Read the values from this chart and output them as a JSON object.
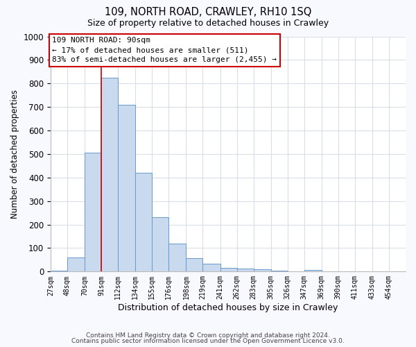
{
  "title": "109, NORTH ROAD, CRAWLEY, RH10 1SQ",
  "subtitle": "Size of property relative to detached houses in Crawley",
  "xlabel": "Distribution of detached houses by size in Crawley",
  "ylabel": "Number of detached properties",
  "bar_color": "#c9d9ee",
  "bar_edge_color": "#6699cc",
  "bar_left_edges": [
    27,
    48,
    70,
    91,
    112,
    134,
    155,
    176,
    198,
    219,
    241,
    262,
    283,
    305,
    326,
    347,
    369,
    390,
    411,
    433
  ],
  "bar_widths": [
    21,
    22,
    21,
    21,
    22,
    21,
    21,
    22,
    21,
    22,
    21,
    21,
    22,
    21,
    21,
    22,
    21,
    21,
    22,
    21
  ],
  "bar_heights": [
    5,
    60,
    505,
    825,
    710,
    420,
    230,
    118,
    58,
    32,
    15,
    12,
    10,
    5,
    0,
    8,
    0,
    0,
    0,
    0
  ],
  "xtick_labels": [
    "27sqm",
    "48sqm",
    "70sqm",
    "91sqm",
    "112sqm",
    "134sqm",
    "155sqm",
    "176sqm",
    "198sqm",
    "219sqm",
    "241sqm",
    "262sqm",
    "283sqm",
    "305sqm",
    "326sqm",
    "347sqm",
    "369sqm",
    "390sqm",
    "411sqm",
    "433sqm",
    "454sqm"
  ],
  "ylim": [
    0,
    1000
  ],
  "yticks": [
    0,
    100,
    200,
    300,
    400,
    500,
    600,
    700,
    800,
    900,
    1000
  ],
  "red_line_x": 91,
  "annotation_title": "109 NORTH ROAD: 90sqm",
  "annotation_line1": "← 17% of detached houses are smaller (511)",
  "annotation_line2": "83% of semi-detached houses are larger (2,455) →",
  "annotation_box_color": "#ffffff",
  "annotation_box_edge": "#cc0000",
  "footer1": "Contains HM Land Registry data © Crown copyright and database right 2024.",
  "footer2": "Contains public sector information licensed under the Open Government Licence v3.0.",
  "fig_bg_color": "#f8f8ff",
  "plot_bg_color": "#ffffff",
  "grid_color": "#d8dde8"
}
